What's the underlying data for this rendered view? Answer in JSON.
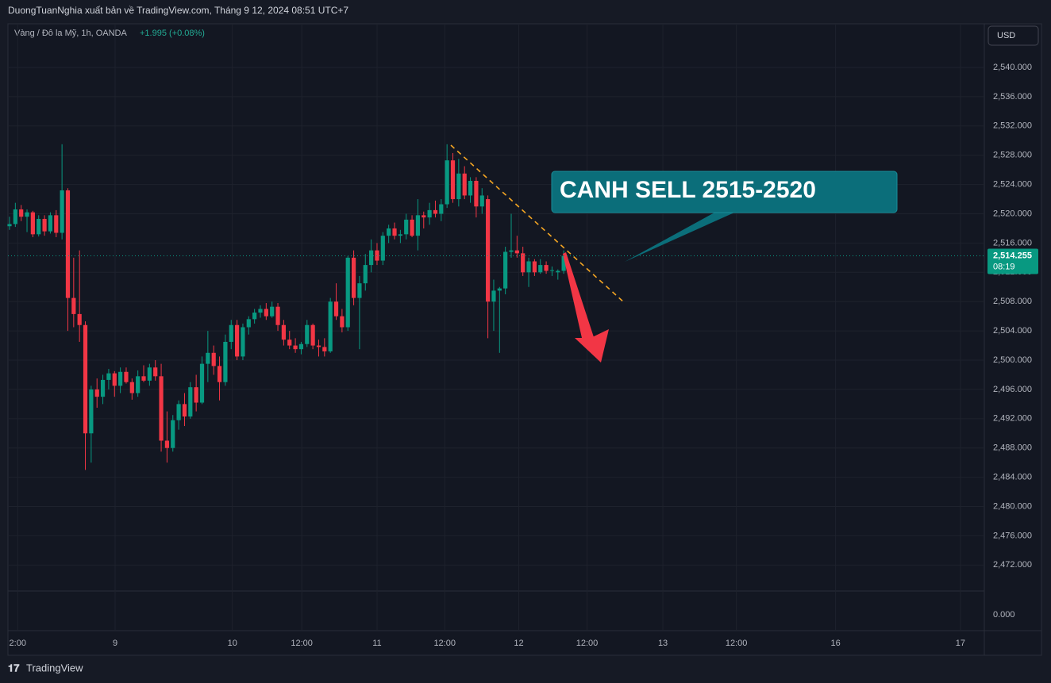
{
  "header": {
    "publisher": "DuongTuanNghia xuất bản về TradingView.com, Tháng 9 12, 2024 08:51 UTC+7"
  },
  "chart_data": {
    "type": "candlestick",
    "symbol": "Vàng / Đô la Mỹ, 1h, OANDA",
    "change": "+1.995 (+0.08%)",
    "currency": "USD",
    "up_color": "#089981",
    "down_color": "#f23645",
    "candles": [
      [
        2518.3,
        2519.6,
        2517.8,
        2518.6
      ],
      [
        2518.6,
        2521.5,
        2518.2,
        2520.6
      ],
      [
        2520.6,
        2521.2,
        2519.0,
        2519.6
      ],
      [
        2519.6,
        2520.6,
        2517.5,
        2520.2
      ],
      [
        2520.2,
        2520.4,
        2516.8,
        2517.2
      ],
      [
        2517.2,
        2519.8,
        2516.9,
        2519.3
      ],
      [
        2519.3,
        2519.8,
        2517.0,
        2517.6
      ],
      [
        2517.6,
        2520.2,
        2517.3,
        2519.8
      ],
      [
        2519.8,
        2520.5,
        2516.8,
        2517.4
      ],
      [
        2517.4,
        2529.5,
        2516.5,
        2523.2
      ],
      [
        2523.2,
        2523.5,
        2504.0,
        2508.5
      ],
      [
        2508.5,
        2514.0,
        2504.5,
        2506.3
      ],
      [
        2506.3,
        2515.0,
        2502.5,
        2504.8
      ],
      [
        2504.8,
        2505.3,
        2485.0,
        2490.0
      ],
      [
        2490.0,
        2496.5,
        2486.0,
        2496.0
      ],
      [
        2496.0,
        2497.5,
        2493.5,
        2495.0
      ],
      [
        2495.0,
        2498.0,
        2494.0,
        2497.3
      ],
      [
        2497.3,
        2498.8,
        2496.0,
        2498.2
      ],
      [
        2498.2,
        2498.5,
        2495.0,
        2496.5
      ],
      [
        2496.5,
        2499.0,
        2495.5,
        2498.4
      ],
      [
        2498.4,
        2499.0,
        2496.8,
        2497.0
      ],
      [
        2497.0,
        2497.5,
        2494.6,
        2495.5
      ],
      [
        2495.5,
        2498.6,
        2495.0,
        2497.8
      ],
      [
        2497.8,
        2499.3,
        2497.0,
        2497.2
      ],
      [
        2497.2,
        2499.5,
        2496.5,
        2499.0
      ],
      [
        2499.0,
        2500.0,
        2497.2,
        2497.8
      ],
      [
        2497.8,
        2499.5,
        2487.5,
        2489.0
      ],
      [
        2489.0,
        2493.0,
        2486.0,
        2488.0
      ],
      [
        2488.0,
        2492.5,
        2487.5,
        2491.8
      ],
      [
        2491.8,
        2494.5,
        2490.5,
        2494.0
      ],
      [
        2494.0,
        2495.5,
        2491.0,
        2492.3
      ],
      [
        2492.3,
        2497.0,
        2492.0,
        2496.3
      ],
      [
        2496.3,
        2498.0,
        2493.0,
        2494.2
      ],
      [
        2494.2,
        2500.5,
        2494.0,
        2499.5
      ],
      [
        2499.5,
        2504.0,
        2497.0,
        2501.0
      ],
      [
        2501.0,
        2502.0,
        2498.0,
        2499.2
      ],
      [
        2499.2,
        2500.5,
        2494.5,
        2497.0
      ],
      [
        2497.0,
        2503.5,
        2496.5,
        2502.5
      ],
      [
        2502.5,
        2505.5,
        2501.5,
        2504.8
      ],
      [
        2504.8,
        2505.5,
        2500.0,
        2500.5
      ],
      [
        2500.5,
        2505.0,
        2500.0,
        2504.5
      ],
      [
        2504.5,
        2506.0,
        2503.5,
        2505.6
      ],
      [
        2505.6,
        2507.0,
        2505.0,
        2506.5
      ],
      [
        2506.5,
        2507.5,
        2505.8,
        2507.0
      ],
      [
        2507.0,
        2507.8,
        2505.5,
        2506.0
      ],
      [
        2506.0,
        2508.0,
        2505.8,
        2507.3
      ],
      [
        2507.3,
        2507.8,
        2504.0,
        2504.8
      ],
      [
        2504.8,
        2505.5,
        2502.0,
        2502.8
      ],
      [
        2502.8,
        2504.0,
        2501.5,
        2502.0
      ],
      [
        2502.0,
        2503.0,
        2501.0,
        2501.5
      ],
      [
        2501.5,
        2502.5,
        2500.8,
        2502.2
      ],
      [
        2502.2,
        2505.5,
        2501.8,
        2504.8
      ],
      [
        2504.8,
        2505.0,
        2501.5,
        2502.0
      ],
      [
        2502.0,
        2502.8,
        2500.5,
        2501.8
      ],
      [
        2501.8,
        2503.0,
        2500.5,
        2501.2
      ],
      [
        2501.2,
        2508.5,
        2501.0,
        2508.0
      ],
      [
        2508.0,
        2510.5,
        2505.5,
        2506.0
      ],
      [
        2506.0,
        2507.0,
        2503.8,
        2504.5
      ],
      [
        2504.5,
        2514.2,
        2504.0,
        2514.0
      ],
      [
        2514.0,
        2515.0,
        2507.5,
        2508.5
      ],
      [
        2508.5,
        2511.5,
        2501.5,
        2510.5
      ],
      [
        2510.5,
        2514.5,
        2509.5,
        2513.0
      ],
      [
        2513.0,
        2516.5,
        2512.0,
        2515.0
      ],
      [
        2515.0,
        2516.0,
        2513.0,
        2513.6
      ],
      [
        2513.6,
        2517.5,
        2513.0,
        2517.0
      ],
      [
        2517.0,
        2518.5,
        2516.0,
        2518.0
      ],
      [
        2518.0,
        2518.8,
        2516.5,
        2517.0
      ],
      [
        2517.0,
        2517.8,
        2516.0,
        2517.2
      ],
      [
        2517.2,
        2520.0,
        2516.5,
        2519.2
      ],
      [
        2519.2,
        2519.8,
        2516.8,
        2517.0
      ],
      [
        2517.0,
        2522.0,
        2515.0,
        2519.8
      ],
      [
        2519.8,
        2520.3,
        2518.0,
        2519.5
      ],
      [
        2519.5,
        2521.5,
        2518.5,
        2520.5
      ],
      [
        2520.5,
        2521.8,
        2519.5,
        2520.0
      ],
      [
        2520.0,
        2522.0,
        2519.0,
        2521.3
      ],
      [
        2521.3,
        2529.5,
        2520.8,
        2527.3
      ],
      [
        2527.3,
        2528.3,
        2521.5,
        2522.0
      ],
      [
        2522.0,
        2527.5,
        2521.0,
        2525.5
      ],
      [
        2525.5,
        2526.5,
        2522.0,
        2522.5
      ],
      [
        2522.5,
        2525.0,
        2521.5,
        2524.5
      ],
      [
        2524.5,
        2525.0,
        2519.5,
        2521.0
      ],
      [
        2521.0,
        2523.5,
        2520.0,
        2522.5
      ],
      [
        2522.0,
        2522.5,
        2503.0,
        2508.0
      ],
      [
        2508.0,
        2511.0,
        2504.0,
        2509.5
      ],
      [
        2509.5,
        2510.0,
        2501.0,
        2509.8
      ],
      [
        2509.8,
        2515.5,
        2509.0,
        2514.8
      ],
      [
        2514.8,
        2520.0,
        2514.0,
        2515.0
      ],
      [
        2515.0,
        2517.0,
        2514.0,
        2514.6
      ],
      [
        2514.6,
        2515.5,
        2511.5,
        2512.0
      ],
      [
        2512.0,
        2514.0,
        2510.0,
        2513.5
      ],
      [
        2513.5,
        2513.8,
        2511.5,
        2512.0
      ],
      [
        2512.0,
        2513.8,
        2511.8,
        2513.0
      ],
      [
        2513.0,
        2513.5,
        2511.8,
        2512.2
      ],
      [
        2512.2,
        2512.8,
        2511.5,
        2512.3
      ],
      [
        2512.0,
        2512.4,
        2511.0,
        2512.2
      ],
      [
        2512.2,
        2515.0,
        2511.8,
        2514.255
      ]
    ],
    "xlim": [
      -0.27,
      167.1
    ],
    "xticks": [
      {
        "value": 1.4,
        "label": "2:00"
      },
      {
        "value": 18.1,
        "label": "9"
      },
      {
        "value": 38.2,
        "label": "10"
      },
      {
        "value": 50.1,
        "label": "12:00"
      },
      {
        "value": 63,
        "label": "11"
      },
      {
        "value": 74.6,
        "label": "12:00"
      },
      {
        "value": 87.3,
        "label": "12"
      },
      {
        "value": 99,
        "label": "12:00"
      },
      {
        "value": 112,
        "label": "13"
      },
      {
        "value": 124.6,
        "label": "12:00"
      },
      {
        "value": 141.6,
        "label": "16"
      },
      {
        "value": 163,
        "label": "17"
      }
    ],
    "ylim": [
      2468.46,
      2545.96
    ],
    "yticks": [
      {
        "value": 2472,
        "label": "2,472.000"
      },
      {
        "value": 2476,
        "label": "2,476.000"
      },
      {
        "value": 2480,
        "label": "2,480.000"
      },
      {
        "value": 2484,
        "label": "2,484.000"
      },
      {
        "value": 2488,
        "label": "2,488.000"
      },
      {
        "value": 2492,
        "label": "2,492.000"
      },
      {
        "value": 2496,
        "label": "2,496.000"
      },
      {
        "value": 2500,
        "label": "2,500.000"
      },
      {
        "value": 2504,
        "label": "2,504.000"
      },
      {
        "value": 2508,
        "label": "2,508.000"
      },
      {
        "value": 2512,
        "label": "2,512.000"
      },
      {
        "value": 2516,
        "label": "2,516.000"
      },
      {
        "value": 2520,
        "label": "2,520.000"
      },
      {
        "value": 2524,
        "label": "2,524.000"
      },
      {
        "value": 2528,
        "label": "2,528.000"
      },
      {
        "value": 2532,
        "label": "2,532.000"
      },
      {
        "value": 2536,
        "label": "2,536.000"
      },
      {
        "value": 2540,
        "label": "2,540.000"
      }
    ],
    "lower_pane_yticks": [
      {
        "value": 0,
        "label": "0.000"
      }
    ],
    "last_price": {
      "value": 2514.255,
      "label": "2,514.255"
    },
    "countdown": "08:19",
    "annotation": "CANH SELL 2515-2520",
    "grid": true
  },
  "footer": {
    "brand": "TradingView"
  }
}
